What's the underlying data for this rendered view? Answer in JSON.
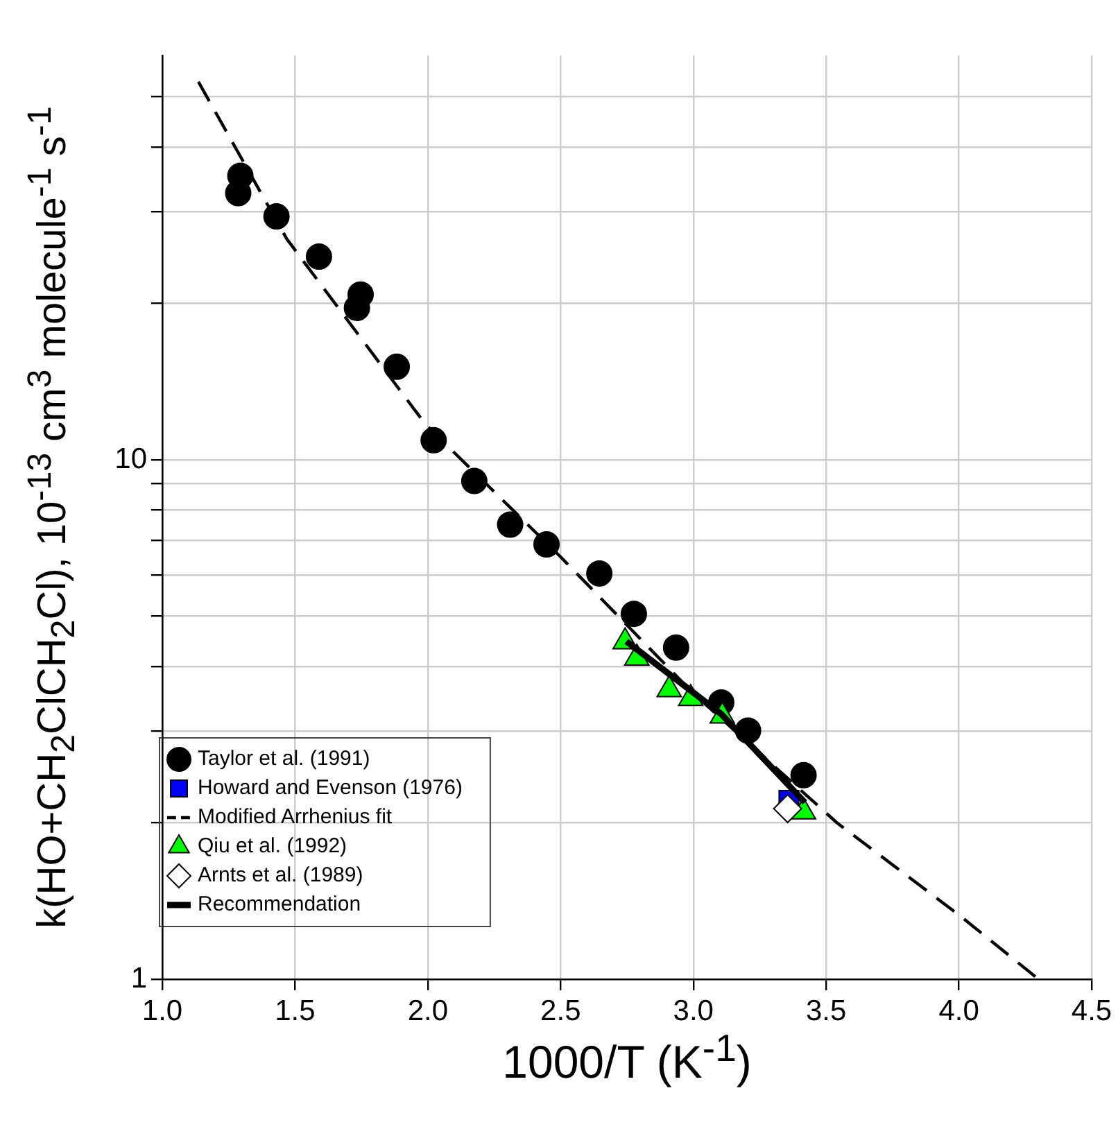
{
  "chart_data": {
    "type": "scatter",
    "xlabel": "1000/T (K$^{-1}$)",
    "ylabel": "k(HO+CH$_{2}$ClCH$_{2}$Cl), 10$^{-13}$ cm$^{3}$ molecule$^{-1}$ s$^{-1}$",
    "log": "y",
    "grid": true,
    "legend": "bottom left",
    "xlim": [
      1.0,
      4.5
    ],
    "xticks": [
      {
        "value": 1.0,
        "label": "1.0"
      },
      {
        "value": 1.5,
        "label": "1.5"
      },
      {
        "value": 2.0,
        "label": "2.0"
      },
      {
        "value": 2.5,
        "label": "2.5"
      },
      {
        "value": 3.0,
        "label": "3.0"
      },
      {
        "value": 3.5,
        "label": "3.5"
      },
      {
        "value": 4.0,
        "label": "4.0"
      },
      {
        "value": 4.5,
        "label": "4.5"
      }
    ],
    "ylim": [
      1,
      60
    ],
    "yticks": [
      1,
      {
        "value": 2,
        "label": null
      },
      {
        "value": 3,
        "label": null
      },
      {
        "value": 4,
        "label": null
      },
      {
        "value": 5,
        "label": null
      },
      {
        "value": 6,
        "label": null
      },
      {
        "value": 7,
        "label": null
      },
      {
        "value": 8,
        "label": null
      },
      {
        "value": 9,
        "label": null
      },
      10,
      {
        "value": 20,
        "label": null
      },
      {
        "value": 30,
        "label": null
      },
      {
        "value": 40,
        "label": null
      },
      {
        "value": 50,
        "label": null
      }
    ],
    "series": [
      {
        "name": "Taylor et al. (1991)",
        "type": "scatter",
        "marker": "circle",
        "color": "#000000",
        "x": [
          1.294,
          1.286,
          1.43,
          1.59,
          1.747,
          1.733,
          1.883,
          2.022,
          2.175,
          2.31,
          2.447,
          2.646,
          2.776,
          2.935,
          3.105,
          3.206,
          3.415
        ],
        "values": [
          35.2,
          32.6,
          29.4,
          24.6,
          20.8,
          19.6,
          15.1,
          10.9,
          9.1,
          7.5,
          6.87,
          6.04,
          5.05,
          4.35,
          3.41,
          3.01,
          2.47
        ]
      },
      {
        "name": "Howard and Evenson (1976)",
        "type": "scatter",
        "marker": "square",
        "color": "#0000ff",
        "x": [
          3.36
        ],
        "values": [
          2.21
        ]
      },
      {
        "name": "Modified Arrhenius fit",
        "type": "line",
        "marker": "none",
        "line_style": "dashed",
        "color": "#000000",
        "x": [
          1.136,
          1.469,
          1.991,
          2.5,
          3.0,
          3.541,
          4.0,
          4.3
        ],
        "values": [
          53.4,
          26.6,
          11.7,
          6.5,
          3.55,
          2.0,
          1.33,
          1.0
        ]
      },
      {
        "name": "Qiu et al. (1992)",
        "type": "scatter",
        "marker": "triangle",
        "color": "#00ff00",
        "x": [
          2.743,
          2.787,
          2.909,
          2.99,
          3.109,
          3.415
        ],
        "values": [
          4.46,
          4.15,
          3.61,
          3.47,
          3.21,
          2.1
        ]
      },
      {
        "name": "Arnts et al. (1989)",
        "type": "scatter",
        "marker": "diamond",
        "color": "#ffffff",
        "x": [
          3.355
        ],
        "values": [
          2.13
        ]
      },
      {
        "name": "Recommendation",
        "type": "line",
        "marker": "none",
        "line_style": "solid",
        "color": "#000000",
        "x": [
          2.748,
          3.105,
          3.42
        ],
        "values": [
          4.47,
          3.24,
          2.19
        ]
      }
    ]
  }
}
